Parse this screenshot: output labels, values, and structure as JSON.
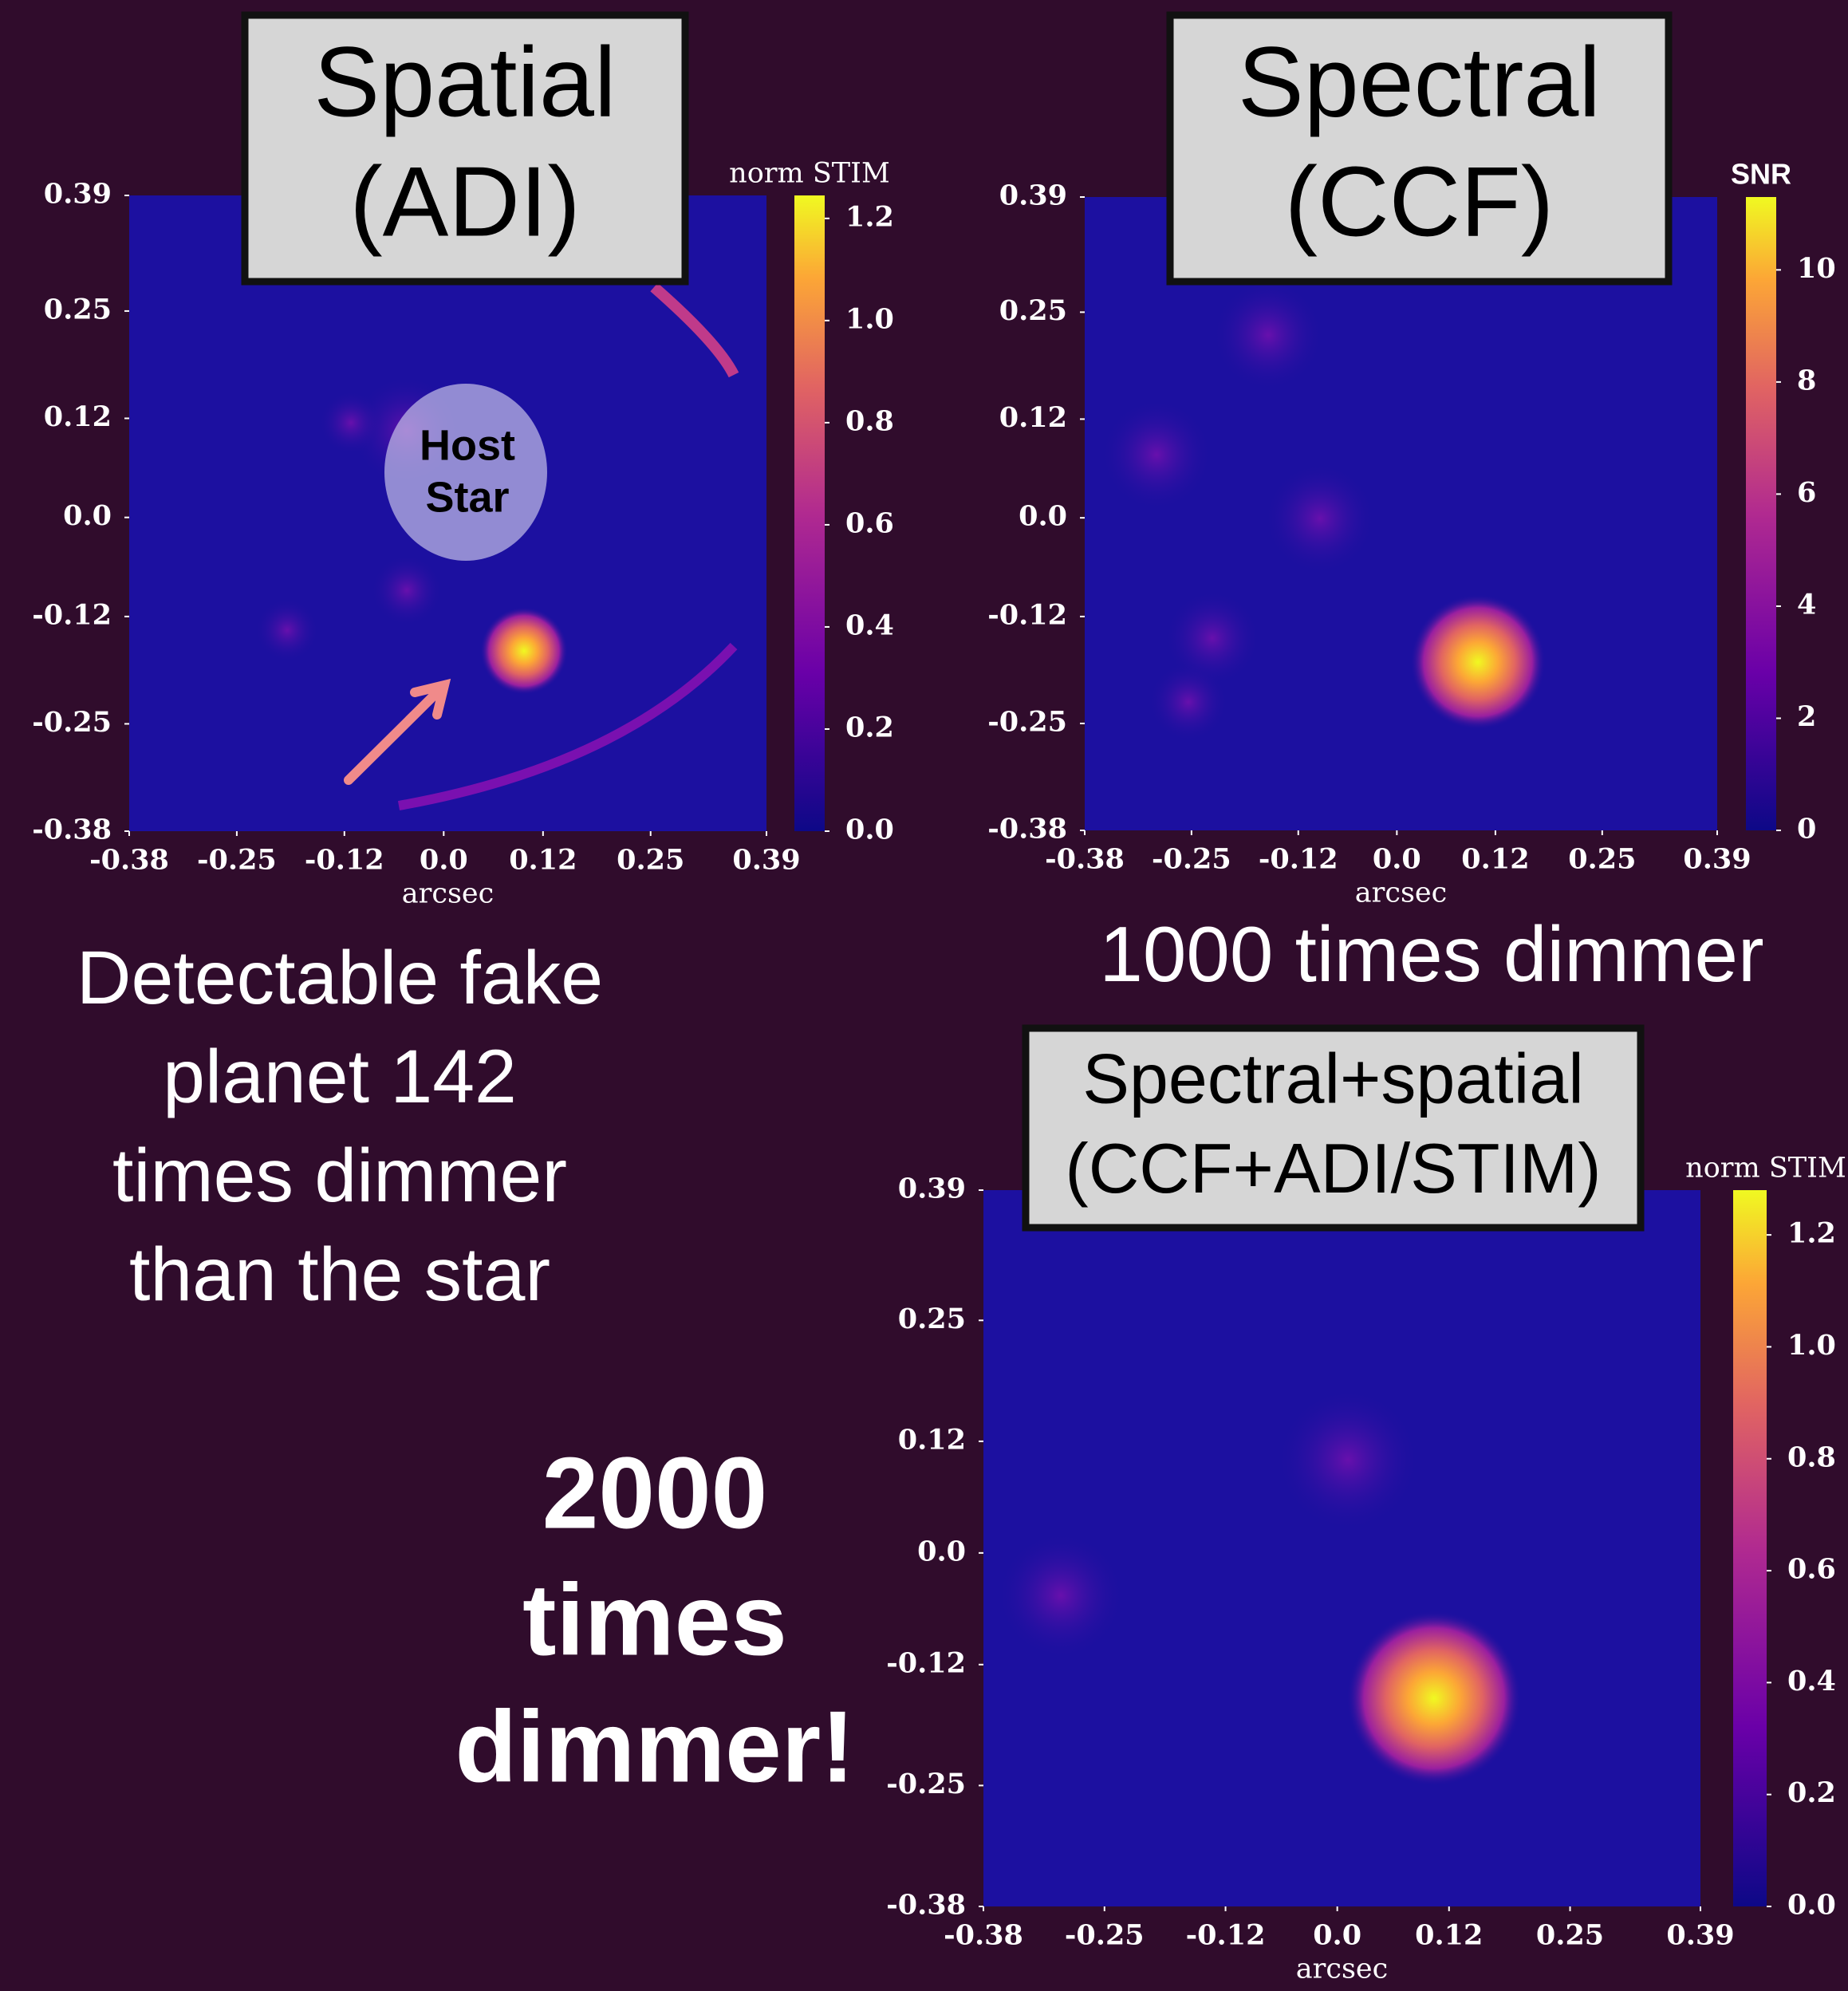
{
  "chart_data": [
    {
      "type": "heatmap",
      "title": [
        "Spatial",
        "(ADI)"
      ],
      "xlabel": "arcsec",
      "xlim": [
        -0.38,
        0.39
      ],
      "ylim": [
        -0.38,
        0.39
      ],
      "xticks": [
        -0.38,
        -0.25,
        -0.12,
        {
          "value": 0,
          "label": "0.0"
        },
        0.12,
        0.25,
        0.39
      ],
      "yticks": [
        -0.38,
        -0.25,
        -0.12,
        {
          "value": 0,
          "label": "0.0"
        },
        0.12,
        0.25,
        0.39
      ],
      "colorbar": {
        "label": "norm STIM",
        "lim": [
          0,
          1.245
        ],
        "ticks": [
          {
            "value": 0,
            "label": "0.0"
          },
          0.2,
          0.4,
          0.6,
          0.8,
          {
            "value": 1,
            "label": "1.0"
          },
          1.2
        ]
      },
      "annotation": [
        "Host",
        "Star"
      ]
    },
    {
      "type": "heatmap",
      "title": [
        "Spectral",
        "(CCF)"
      ],
      "xlabel": "arcsec",
      "xlim": [
        -0.38,
        0.39
      ],
      "ylim": [
        -0.38,
        0.39
      ],
      "xticks": [
        -0.38,
        -0.25,
        -0.12,
        {
          "value": 0,
          "label": "0.0"
        },
        0.12,
        0.25,
        0.39
      ],
      "yticks": [
        -0.38,
        -0.25,
        -0.12,
        {
          "value": 0,
          "label": "0.0"
        },
        0.12,
        0.25,
        0.39
      ],
      "colorbar": {
        "label": "SNR",
        "lim": [
          0,
          11.3
        ],
        "ticks": [
          0,
          2,
          4,
          6,
          8,
          10
        ]
      }
    },
    {
      "type": "heatmap",
      "title": [
        "Spectral+spatial",
        "(CCF+ADI/STIM)"
      ],
      "xlabel": "arcsec",
      "xlim": [
        -0.38,
        0.39
      ],
      "ylim": [
        -0.38,
        0.39
      ],
      "xticks": [
        -0.38,
        -0.25,
        -0.12,
        {
          "value": 0,
          "label": "0.0"
        },
        0.12,
        0.25,
        0.39
      ],
      "yticks": [
        -0.38,
        -0.25,
        -0.12,
        {
          "value": 0,
          "label": "0.0"
        },
        0.12,
        0.25,
        0.39
      ],
      "colorbar": {
        "label": "norm STIM",
        "lim": [
          0,
          1.28
        ],
        "ticks": [
          {
            "value": 0,
            "label": "0.0"
          },
          0.2,
          0.4,
          0.6,
          0.8,
          {
            "value": 1,
            "label": "1.0"
          },
          1.2
        ]
      }
    }
  ],
  "texts": {
    "detectable": [
      "Detectable fake",
      "planet 142",
      "times dimmer",
      "than the star"
    ],
    "thousand": "1000 times dimmer",
    "two_thousand": [
      "2000",
      "times",
      "dimmer!"
    ]
  }
}
